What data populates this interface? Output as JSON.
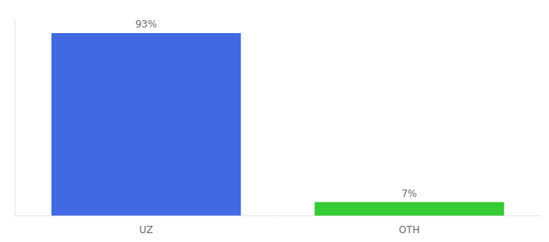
{
  "chart_data": {
    "type": "bar",
    "categories": [
      "UZ",
      "OTH"
    ],
    "values": [
      93,
      7
    ],
    "value_labels": [
      "93%",
      "7%"
    ],
    "colors": [
      "#4169E1",
      "#33CC33"
    ],
    "ylim": [
      0,
      100
    ],
    "data_labels": true,
    "tick_labels": "x",
    "grid": false
  }
}
